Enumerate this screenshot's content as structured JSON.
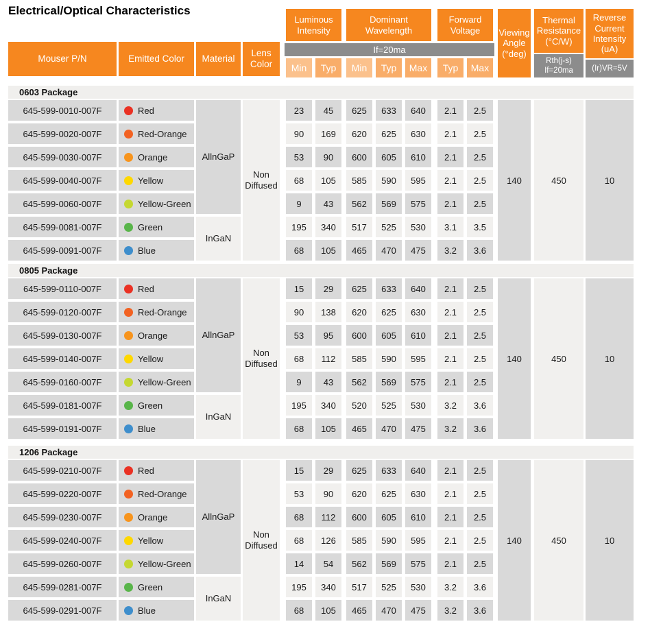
{
  "title": "Electrical/Optical Characteristics",
  "colors": {
    "orange": "#f6871f",
    "orange_tint_min": "#fbc18c",
    "orange_tint_typ": "#f9ad69",
    "gray_bar": "#8c8c8c",
    "cell_dark": "#d9d9d9",
    "cell_light": "#f1f0ee",
    "band": "#f0efed"
  },
  "header": {
    "mouser_pn": "Mouser P/N",
    "emitted_color": "Emitted Color",
    "material": "Material",
    "lens_color": "Lens Color",
    "condition": "If=20ma",
    "groups": [
      {
        "label": "Luminous Intensity"
      },
      {
        "label": "Dominant Wavelength"
      },
      {
        "label": "Forward Voltage"
      }
    ],
    "sub_labels": [
      "Min",
      "Typ",
      "Min",
      "Typ",
      "Max",
      "Typ",
      "Max"
    ],
    "viewing_angle": "Viewing Angle (°deg)",
    "thermal_resistance": "Thermal Resistance (°C/W)",
    "thermal_condition": "Rth(j-s) If=20ma",
    "reverse_current": "Reverse Current Intensity (uA)",
    "reverse_condition": "(Ir)VR=5V"
  },
  "sections": [
    {
      "package": "0603 Package",
      "material_groups": [
        {
          "label": "AllnGaP",
          "span": 5
        },
        {
          "label": "InGaN",
          "span": 2
        }
      ],
      "lens": "Non Diffused",
      "viewing_angle": "140",
      "thermal_resistance": "450",
      "reverse_current": "10",
      "rows": [
        {
          "pn": "645-599-0010-007F",
          "color": "Red",
          "dot": "#ea3123",
          "values": [
            "23",
            "45",
            "625",
            "633",
            "640",
            "2.1",
            "2.5"
          ]
        },
        {
          "pn": "645-599-0020-007F",
          "color": "Red-Orange",
          "dot": "#f26222",
          "values": [
            "90",
            "169",
            "620",
            "625",
            "630",
            "2.1",
            "2.5"
          ]
        },
        {
          "pn": "645-599-0030-007F",
          "color": "Orange",
          "dot": "#f7941d",
          "values": [
            "53",
            "90",
            "600",
            "605",
            "610",
            "2.1",
            "2.5"
          ]
        },
        {
          "pn": "645-599-0040-007F",
          "color": "Yellow",
          "dot": "#fed800",
          "values": [
            "68",
            "105",
            "585",
            "590",
            "595",
            "2.1",
            "2.5"
          ]
        },
        {
          "pn": "645-599-0060-007F",
          "color": "Yellow-Green",
          "dot": "#c5d831",
          "values": [
            "9",
            "43",
            "562",
            "569",
            "575",
            "2.1",
            "2.5"
          ]
        },
        {
          "pn": "645-599-0081-007F",
          "color": "Green",
          "dot": "#59b54a",
          "values": [
            "195",
            "340",
            "517",
            "525",
            "530",
            "3.1",
            "3.5"
          ]
        },
        {
          "pn": "645-599-0091-007F",
          "color": "Blue",
          "dot": "#3e8ecc",
          "values": [
            "68",
            "105",
            "465",
            "470",
            "475",
            "3.2",
            "3.6"
          ]
        }
      ]
    },
    {
      "package": "0805 Package",
      "material_groups": [
        {
          "label": "AllnGaP",
          "span": 5
        },
        {
          "label": "InGaN",
          "span": 2
        }
      ],
      "lens": "Non Diffused",
      "viewing_angle": "140",
      "thermal_resistance": "450",
      "reverse_current": "10",
      "rows": [
        {
          "pn": "645-599-0110-007F",
          "color": "Red",
          "dot": "#ea3123",
          "values": [
            "15",
            "29",
            "625",
            "633",
            "640",
            "2.1",
            "2.5"
          ]
        },
        {
          "pn": "645-599-0120-007F",
          "color": "Red-Orange",
          "dot": "#f26222",
          "values": [
            "90",
            "138",
            "620",
            "625",
            "630",
            "2.1",
            "2.5"
          ]
        },
        {
          "pn": "645-599-0130-007F",
          "color": "Orange",
          "dot": "#f7941d",
          "values": [
            "53",
            "95",
            "600",
            "605",
            "610",
            "2.1",
            "2.5"
          ]
        },
        {
          "pn": "645-599-0140-007F",
          "color": "Yellow",
          "dot": "#fed800",
          "values": [
            "68",
            "112",
            "585",
            "590",
            "595",
            "2.1",
            "2.5"
          ]
        },
        {
          "pn": "645-599-0160-007F",
          "color": "Yellow-Green",
          "dot": "#c5d831",
          "values": [
            "9",
            "43",
            "562",
            "569",
            "575",
            "2.1",
            "2.5"
          ]
        },
        {
          "pn": "645-599-0181-007F",
          "color": "Green",
          "dot": "#59b54a",
          "values": [
            "195",
            "340",
            "520",
            "525",
            "530",
            "3.2",
            "3.6"
          ]
        },
        {
          "pn": "645-599-0191-007F",
          "color": "Blue",
          "dot": "#3e8ecc",
          "values": [
            "68",
            "105",
            "465",
            "470",
            "475",
            "3.2",
            "3.6"
          ]
        }
      ]
    },
    {
      "package": "1206 Package",
      "material_groups": [
        {
          "label": "AllnGaP",
          "span": 5
        },
        {
          "label": "InGaN",
          "span": 2
        }
      ],
      "lens": "Non Diffused",
      "viewing_angle": "140",
      "thermal_resistance": "450",
      "reverse_current": "10",
      "rows": [
        {
          "pn": "645-599-0210-007F",
          "color": "Red",
          "dot": "#ea3123",
          "values": [
            "15",
            "29",
            "625",
            "633",
            "640",
            "2.1",
            "2.5"
          ]
        },
        {
          "pn": "645-599-0220-007F",
          "color": "Red-Orange",
          "dot": "#f26222",
          "values": [
            "53",
            "90",
            "620",
            "625",
            "630",
            "2.1",
            "2.5"
          ]
        },
        {
          "pn": "645-599-0230-007F",
          "color": "Orange",
          "dot": "#f7941d",
          "values": [
            "68",
            "112",
            "600",
            "605",
            "610",
            "2.1",
            "2.5"
          ]
        },
        {
          "pn": "645-599-0240-007F",
          "color": "Yellow",
          "dot": "#fed800",
          "values": [
            "68",
            "126",
            "585",
            "590",
            "595",
            "2.1",
            "2.5"
          ]
        },
        {
          "pn": "645-599-0260-007F",
          "color": "Yellow-Green",
          "dot": "#c5d831",
          "values": [
            "14",
            "54",
            "562",
            "569",
            "575",
            "2.1",
            "2.5"
          ]
        },
        {
          "pn": "645-599-0281-007F",
          "color": "Green",
          "dot": "#59b54a",
          "values": [
            "195",
            "340",
            "517",
            "525",
            "530",
            "3.2",
            "3.6"
          ]
        },
        {
          "pn": "645-599-0291-007F",
          "color": "Blue",
          "dot": "#3e8ecc",
          "values": [
            "68",
            "105",
            "465",
            "470",
            "475",
            "3.2",
            "3.6"
          ]
        }
      ]
    }
  ]
}
